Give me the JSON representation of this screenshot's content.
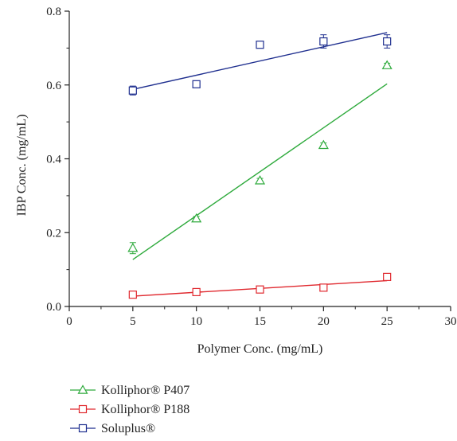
{
  "chart_data": {
    "type": "scatter",
    "title": "",
    "xlabel": "Polymer Conc. (mg/mL)",
    "ylabel": "IBP Conc. (mg/mL)",
    "xlim": [
      0,
      30
    ],
    "ylim": [
      0,
      0.8
    ],
    "xticks": [
      "0",
      "5",
      "10",
      "15",
      "20",
      "25",
      "30"
    ],
    "yticks": [
      "0.0",
      "0.2",
      "0.4",
      "0.6",
      "0.8"
    ],
    "grid": false,
    "legend_position": "bottom-left",
    "x": [
      5,
      10,
      15,
      20,
      25
    ],
    "series": [
      {
        "name": "Kolliphor® P407",
        "marker": "triangle",
        "color": "#2eaa3c",
        "values": [
          0.158,
          0.238,
          0.341,
          0.437,
          0.653
        ],
        "errors": [
          0.015,
          0.006,
          0.006,
          0.006,
          0.006
        ],
        "fit": [
          0.127,
          0.603
        ]
      },
      {
        "name": "Kolliphor® P188",
        "marker": "square",
        "color": "#e0282e",
        "values": [
          0.032,
          0.039,
          0.046,
          0.051,
          0.08
        ],
        "errors": [
          0.003,
          0.003,
          0.003,
          0.003,
          0.003
        ],
        "fit": [
          0.028,
          0.07
        ]
      },
      {
        "name": "Soluplus®",
        "marker": "square",
        "color": "#1f2f8f",
        "values": [
          0.585,
          0.602,
          0.709,
          0.718,
          0.718
        ],
        "errors": [
          0.012,
          0.005,
          0.008,
          0.018,
          0.018
        ],
        "fit": [
          0.588,
          0.742
        ]
      }
    ]
  }
}
